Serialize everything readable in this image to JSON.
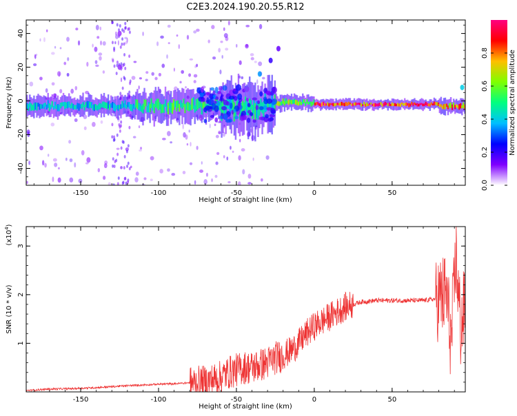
{
  "title": "C2E3.2024.190.20.55.R12",
  "chart_data": [
    {
      "type": "heatmap",
      "xlabel": "Height of straight line (km)",
      "ylabel": "Frequency (Hz)",
      "xlim": [
        -185,
        97
      ],
      "ylim": [
        -50,
        48
      ],
      "x_ticks": [
        -150,
        -100,
        -50,
        0,
        50
      ],
      "y_ticks": [
        -40,
        -20,
        0,
        20,
        40
      ],
      "colorbar": {
        "label": "Normalized spectral amplitude",
        "range": [
          0,
          1
        ],
        "ticks": [
          "0.0",
          "0.2",
          "0.4",
          "0.6",
          "0.8"
        ],
        "colors": [
          "#ffffff",
          "#7f00ff",
          "#0000ff",
          "#00bfff",
          "#00ff7f",
          "#7fff00",
          "#ffbf00",
          "#ff0000",
          "#ff0080"
        ]
      },
      "bands": [
        {
          "x0": -185,
          "x1": -115,
          "center": -3,
          "width": 4,
          "intensity": 0.45
        },
        {
          "x0": -115,
          "x1": -60,
          "center": -3,
          "width": 6,
          "intensity": 0.55
        },
        {
          "x0": -60,
          "x1": -25,
          "center": -4,
          "width": 10,
          "intensity": 0.5
        },
        {
          "x0": -25,
          "x1": 0,
          "center": -1,
          "width": 3,
          "intensity": 0.65
        },
        {
          "x0": 0,
          "x1": 80,
          "center": -2,
          "width": 2,
          "intensity": 0.95
        },
        {
          "x0": 80,
          "x1": 97,
          "center": -3,
          "width": 3,
          "intensity": 0.85
        }
      ],
      "features": [
        {
          "x": -35,
          "y": 16,
          "intensity": 0.35
        },
        {
          "x": -28,
          "y": 24,
          "intensity": 0.2
        },
        {
          "x": -23,
          "y": 31,
          "intensity": 0.15
        },
        {
          "x": -125,
          "y": 40,
          "intensity": 0.1
        },
        {
          "x": -125,
          "y": 20,
          "intensity": 0.1
        },
        {
          "x": -145,
          "y": -35,
          "intensity": 0.08
        },
        {
          "x": 95,
          "y": 8,
          "intensity": 0.4
        }
      ]
    },
    {
      "type": "line",
      "xlabel": "Height of straight line (km)",
      "ylabel": "SNR (10 * v/v)",
      "y_multiplier": "(x10",
      "y_multiplier_exp": "4",
      "y_multiplier_close": ")",
      "xlim": [
        -185,
        97
      ],
      "ylim": [
        0,
        3.4
      ],
      "x_ticks": [
        -150,
        -100,
        -50,
        0,
        50
      ],
      "y_ticks": [
        1,
        2,
        3
      ],
      "series": [
        {
          "color": "#ee3333",
          "x": [
            -185,
            -170,
            -155,
            -140,
            -120,
            -100,
            -90,
            -80,
            -70,
            -65,
            -60,
            -55,
            -50,
            -45,
            -40,
            -35,
            -30,
            -25,
            -20,
            -15,
            -10,
            -5,
            0,
            5,
            10,
            15,
            20,
            25,
            30,
            40,
            50,
            60,
            70,
            75,
            80,
            85,
            88,
            91,
            94,
            97
          ],
          "y": [
            0.02,
            0.05,
            0.06,
            0.08,
            0.12,
            0.15,
            0.16,
            0.18,
            0.2,
            0.25,
            0.3,
            0.4,
            0.45,
            0.5,
            0.5,
            0.55,
            0.6,
            0.7,
            0.75,
            0.85,
            1.0,
            1.2,
            1.35,
            1.45,
            1.55,
            1.65,
            1.75,
            1.8,
            1.85,
            1.88,
            1.88,
            1.88,
            1.88,
            1.9,
            1.92,
            2.0,
            1.0,
            2.8,
            1.3,
            1.8
          ]
        }
      ]
    }
  ]
}
